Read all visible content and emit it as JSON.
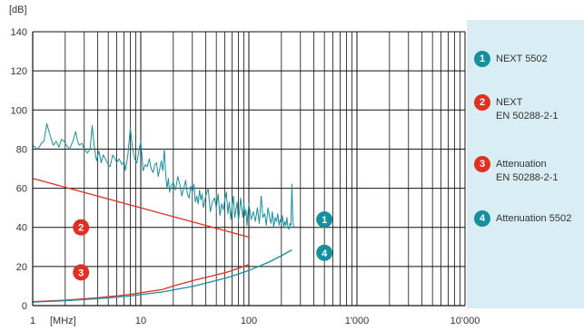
{
  "chart_data": {
    "type": "line",
    "ylabel": "[dB]",
    "xunit": "[MHz]",
    "ylim": [
      0,
      140
    ],
    "xlim": [
      1,
      10000
    ],
    "x_scale": "log",
    "y_ticks": [
      0,
      20,
      40,
      60,
      80,
      100,
      120,
      140
    ],
    "x_ticks": [
      {
        "value": 1,
        "label": "1"
      },
      {
        "value": 10,
        "label": "10"
      },
      {
        "value": 100,
        "label": "100"
      },
      {
        "value": 1000,
        "label": "1'000"
      },
      {
        "value": 10000,
        "label": "10'000"
      }
    ],
    "grid": true,
    "legend_position": "right",
    "series": [
      {
        "id": "1",
        "name": "NEXT 5502",
        "color": "#14909e",
        "x": [
          1,
          1.05,
          1.1,
          1.15,
          1.2,
          1.27,
          1.35,
          1.45,
          1.55,
          1.65,
          1.75,
          1.85,
          1.95,
          2.05,
          2.2,
          2.35,
          2.5,
          2.6,
          2.7,
          2.85,
          3.0,
          3.2,
          3.4,
          3.55,
          3.7,
          3.9,
          4.1,
          4.3,
          4.5,
          4.7,
          4.9,
          5.0,
          5.2,
          5.5,
          5.8,
          6.0,
          6.3,
          6.7,
          7.0,
          7.2,
          7.6,
          8.0,
          8.4,
          8.8,
          9.2,
          9.6,
          10,
          10.5,
          11,
          11.5,
          12,
          12.5,
          13,
          13.5,
          14,
          14.5,
          15,
          15.5,
          16,
          16.5,
          17,
          17.5,
          18,
          18.5,
          19,
          20,
          21,
          22,
          23,
          24,
          25,
          26,
          27,
          28,
          29,
          30,
          31,
          32,
          33,
          34,
          35,
          36,
          37,
          38,
          40,
          42,
          44,
          46,
          48,
          50,
          52,
          54,
          56,
          58,
          60,
          62,
          64,
          66,
          68,
          70,
          72,
          74,
          76,
          78,
          80,
          82,
          84,
          86,
          88,
          90,
          92,
          94,
          96,
          98,
          100,
          105,
          110,
          115,
          120,
          125,
          130,
          135,
          140,
          145,
          150,
          155,
          160,
          165,
          170,
          175,
          180,
          185,
          190,
          195,
          200,
          205,
          210,
          215,
          220,
          225,
          230,
          235,
          240,
          245,
          250,
          255,
          260
        ],
        "values": [
          82,
          81,
          80,
          81,
          83,
          84,
          93,
          87,
          82,
          84,
          81,
          85,
          84,
          82,
          80,
          84,
          89,
          84,
          82,
          83,
          80,
          78,
          80,
          92,
          82,
          74,
          79,
          73,
          77,
          75,
          73,
          72,
          71,
          77,
          75,
          73,
          75,
          72,
          74,
          69,
          77,
          91,
          80,
          75,
          73,
          79,
          84,
          69,
          72,
          71,
          75,
          70,
          68,
          72,
          73,
          66,
          70,
          74,
          69,
          80,
          67,
          60,
          65,
          58,
          61,
          63,
          59,
          66,
          62,
          56,
          60,
          64,
          57,
          55,
          61,
          58,
          62,
          53,
          56,
          52,
          59,
          54,
          57,
          50,
          56,
          60,
          48,
          53,
          55,
          50,
          57,
          46,
          52,
          49,
          54,
          58,
          47,
          53,
          44,
          51,
          56,
          45,
          49,
          53,
          43,
          48,
          55,
          50,
          45,
          52,
          46,
          49,
          41,
          47,
          52,
          44,
          48,
          43,
          50,
          42,
          56,
          45,
          47,
          41,
          50,
          46,
          42,
          48,
          40,
          45,
          43,
          47,
          41,
          44,
          42,
          46,
          40,
          43,
          41,
          45,
          40,
          39,
          42,
          41,
          62,
          44,
          40
        ]
      },
      {
        "id": "2",
        "name": "NEXT\nEN 50288-2-1",
        "color": "#e03024",
        "x": [
          1,
          100
        ],
        "values": [
          65,
          35
        ]
      },
      {
        "id": "3",
        "name": "Attenuation\nEN 50288-2-1",
        "color": "#e03024",
        "x": [
          1,
          2,
          4,
          8,
          16,
          20,
          31.25,
          62.5,
          100
        ],
        "values": [
          2,
          2.8,
          4,
          5.7,
          8.3,
          10,
          13,
          17,
          21
        ]
      },
      {
        "id": "4",
        "name": "Attenuation 5502",
        "color": "#14909e",
        "x": [
          1,
          2,
          4,
          8,
          16,
          31.25,
          62.5,
          100,
          150,
          200,
          250
        ],
        "values": [
          1.8,
          2.5,
          3.5,
          4.9,
          7.0,
          10.0,
          14.2,
          18.0,
          22.0,
          25.5,
          28.5
        ]
      }
    ],
    "callouts": [
      {
        "label": "1",
        "color": "#14909e",
        "x": 500,
        "y": 44
      },
      {
        "label": "2",
        "color": "#e03024",
        "x": 2.8,
        "y": 40
      },
      {
        "label": "3",
        "color": "#e03024",
        "x": 2.8,
        "y": 17
      },
      {
        "label": "4",
        "color": "#14909e",
        "x": 500,
        "y": 27
      }
    ]
  }
}
